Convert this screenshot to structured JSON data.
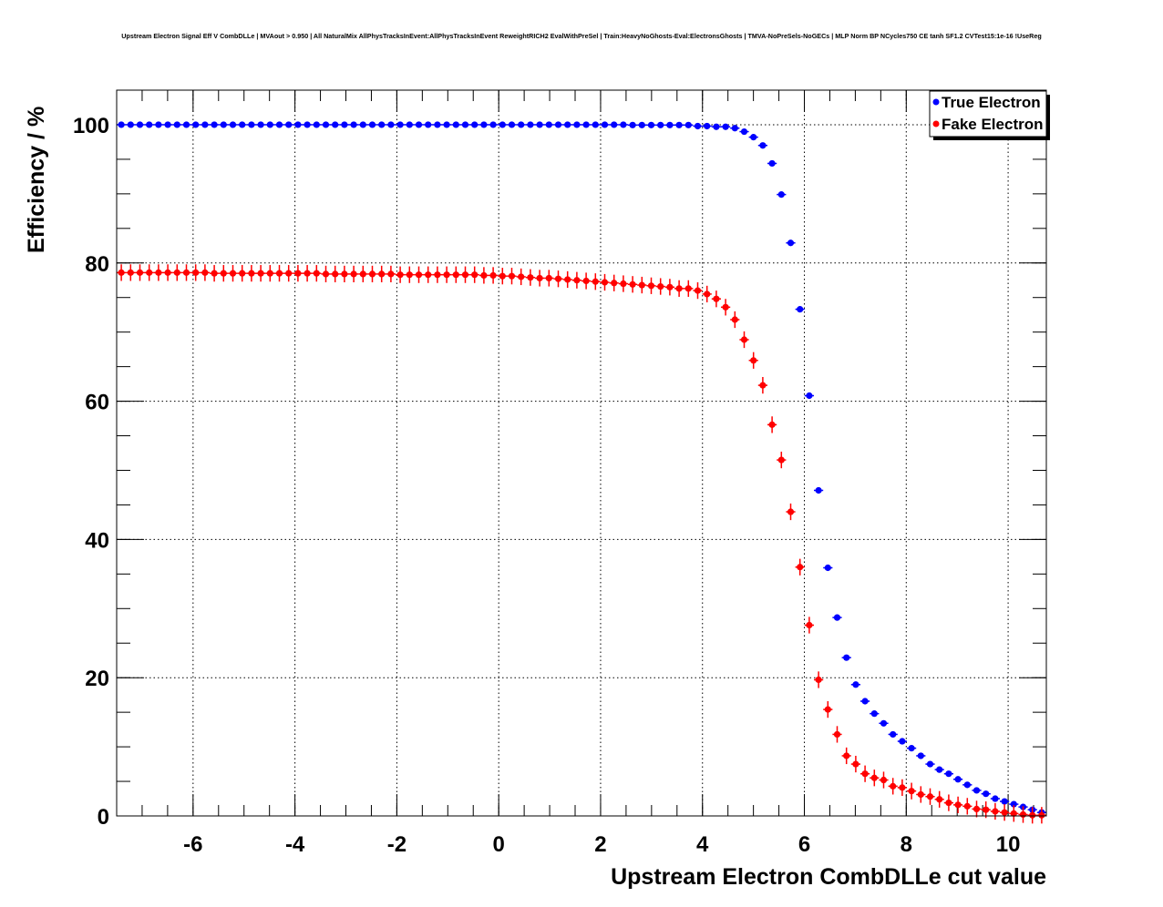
{
  "chart_data": {
    "type": "scatter",
    "title": "Upstream Electron Signal Eff V CombDLLe | MVAout > 0.950 | All NaturalMix AllPhysTracksInEvent:AllPhysTracksInEvent ReweightRICH2 EvalWithPreSel | Train:HeavyNoGhosts-Eval:ElectronsGhosts | TMVA-NoPreSels-NoGECs | MLP Norm BP NCycles750 CE tanh SF1.2 CVTest15:1e-16 !UseReg",
    "xlabel": "Upstream Electron CombDLLe cut value",
    "ylabel": "Efficiency / %",
    "xlim": [
      -7.5,
      10.75
    ],
    "ylim": [
      0,
      105
    ],
    "nbins": 100,
    "xticks": [
      -6,
      -4,
      -2,
      0,
      2,
      4,
      6,
      8,
      10
    ],
    "yticks": [
      0,
      20,
      40,
      60,
      80,
      100
    ],
    "grid": true,
    "legend_position": "top-right",
    "series": [
      {
        "name": "True Electron",
        "color": "#0000ff",
        "error": 0.15,
        "values": [
          100,
          100,
          100,
          100,
          100,
          100,
          100,
          100,
          100,
          100,
          100,
          100,
          100,
          100,
          100,
          100,
          100,
          100,
          100,
          100,
          100,
          100,
          100,
          100,
          100,
          100,
          100,
          100,
          100,
          100,
          100,
          100,
          100,
          100,
          100,
          100,
          100,
          100,
          100,
          100,
          100,
          100,
          100,
          100,
          100,
          100,
          100,
          100,
          100,
          100,
          100,
          100,
          100,
          100,
          100,
          99.95,
          99.95,
          99.95,
          99.95,
          99.95,
          99.95,
          99.95,
          99.8,
          99.8,
          99.7,
          99.7,
          99.5,
          99.0,
          98.2,
          97.0,
          94.4,
          89.9,
          82.9,
          73.3,
          60.8,
          47.1,
          35.9,
          28.7,
          22.9,
          19.0,
          16.6,
          14.8,
          13.4,
          11.8,
          10.8,
          9.8,
          8.7,
          7.5,
          6.7,
          6.1,
          5.3,
          4.5,
          3.7,
          3.2,
          2.5,
          2.1,
          1.7,
          1.3,
          0.9,
          0.5
        ]
      },
      {
        "name": "Fake Electron",
        "color": "#ff0000",
        "error": 1.2,
        "values": [
          78.6,
          78.6,
          78.6,
          78.6,
          78.6,
          78.6,
          78.6,
          78.6,
          78.6,
          78.6,
          78.5,
          78.5,
          78.5,
          78.5,
          78.5,
          78.5,
          78.5,
          78.5,
          78.5,
          78.5,
          78.5,
          78.5,
          78.4,
          78.4,
          78.4,
          78.4,
          78.4,
          78.4,
          78.4,
          78.4,
          78.3,
          78.3,
          78.3,
          78.3,
          78.3,
          78.3,
          78.3,
          78.3,
          78.3,
          78.2,
          78.2,
          78.1,
          78.1,
          78.0,
          77.9,
          77.8,
          77.8,
          77.7,
          77.6,
          77.5,
          77.4,
          77.3,
          77.2,
          77.1,
          77.0,
          76.9,
          76.8,
          76.7,
          76.6,
          76.5,
          76.3,
          76.3,
          76.0,
          75.5,
          74.8,
          73.6,
          71.8,
          68.9,
          65.9,
          62.3,
          56.6,
          51.5,
          44.0,
          36.0,
          27.6,
          19.7,
          15.4,
          11.8,
          8.7,
          7.5,
          6.1,
          5.5,
          5.2,
          4.3,
          4.1,
          3.6,
          3.1,
          2.8,
          2.4,
          1.9,
          1.6,
          1.4,
          1.0,
          0.9,
          0.66,
          0.5,
          0.35,
          0.2,
          0.1,
          0.1
        ]
      }
    ]
  }
}
